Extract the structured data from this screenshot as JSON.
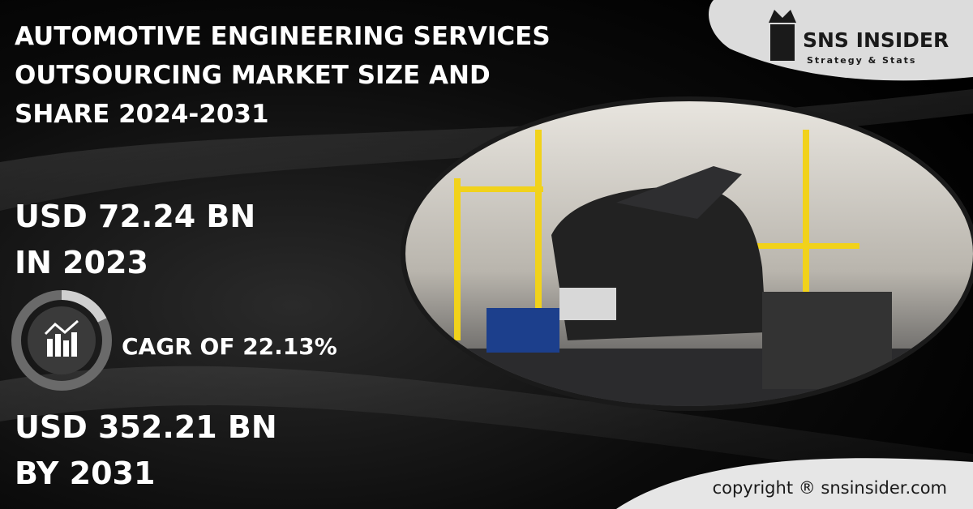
{
  "header": {
    "title_lines": [
      "AUTOMOTIVE ENGINEERING SERVICES",
      "OUTSOURCING MARKET SIZE AND",
      "SHARE 2024-2031"
    ]
  },
  "logo": {
    "name": "SNS INSIDER",
    "tagline": "Strategy & Stats"
  },
  "stats": {
    "base_value": "USD 72.24 BN",
    "base_year": "IN 2023",
    "cagr": "CAGR OF 22.13%",
    "forecast_value": "USD 352.21 BN",
    "forecast_year": "BY 2031"
  },
  "footer": {
    "copyright": "copyright ® snsinsider.com"
  }
}
